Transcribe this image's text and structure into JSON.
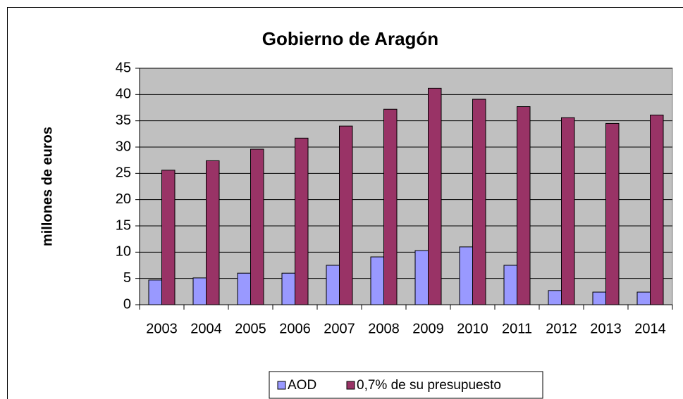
{
  "chart_data": {
    "type": "bar",
    "title": "Gobierno de Aragón",
    "y_label": "millones de euros",
    "categories": [
      "2003",
      "2004",
      "2005",
      "2006",
      "2007",
      "2008",
      "2009",
      "2010",
      "2011",
      "2012",
      "2013",
      "2014"
    ],
    "series": [
      {
        "name": "AOD",
        "color": "#9999ff",
        "values": [
          4.7,
          5.1,
          6.0,
          6.0,
          7.5,
          9.1,
          10.3,
          11.0,
          7.5,
          2.7,
          2.4,
          2.4
        ]
      },
      {
        "name": "0,7% de su presupuesto",
        "color": "#993366",
        "values": [
          25.6,
          27.4,
          29.6,
          31.7,
          34.0,
          37.2,
          41.2,
          39.1,
          37.7,
          35.6,
          34.5,
          36.1
        ]
      }
    ],
    "ylim": [
      0,
      45
    ],
    "yticks": [
      0,
      5,
      10,
      15,
      20,
      25,
      30,
      35,
      40,
      45
    ],
    "grid": true,
    "legend": "bottom",
    "plot_background": "#c0c0c0"
  }
}
